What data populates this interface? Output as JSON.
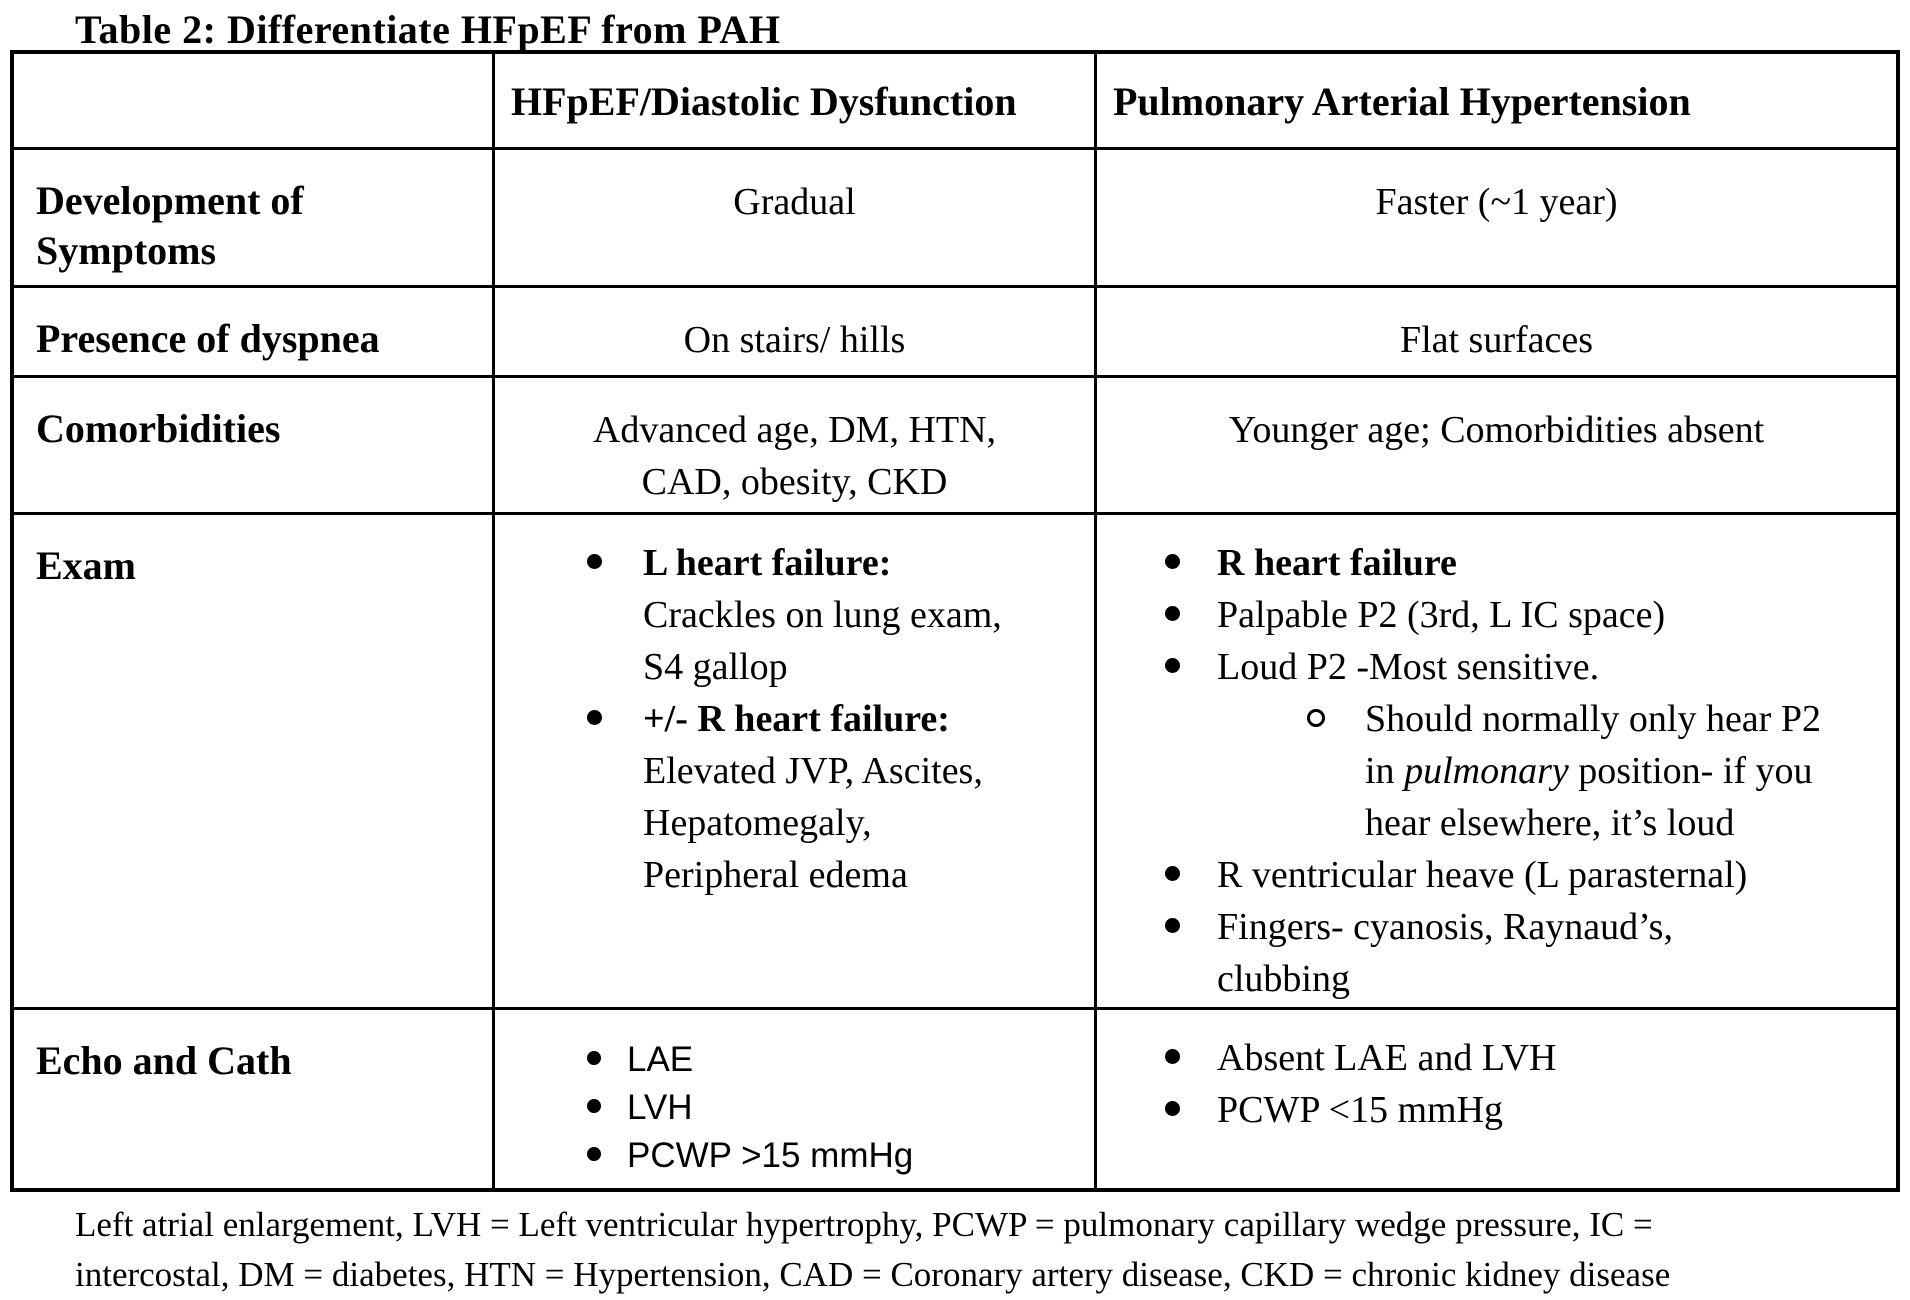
{
  "title": "Table 2: Differentiate HFpEF from PAH",
  "table": {
    "headers": {
      "hfpef": "HFpEF/Diastolic Dysfunction",
      "pah": "Pulmonary Arterial Hypertension"
    },
    "rows": {
      "development": {
        "label_line1": "Development of",
        "label_line2": "Symptoms",
        "hfpef": "Gradual",
        "pah": "Faster (~1 year)"
      },
      "dyspnea": {
        "label": "Presence of dyspnea",
        "hfpef": "On stairs/ hills",
        "pah": "Flat surfaces"
      },
      "comorbidities": {
        "label": "Comorbidities",
        "hfpef_line1": "Advanced age, DM, HTN,",
        "hfpef_line2": "CAD, obesity, CKD",
        "pah": "Younger age; Comorbidities absent"
      },
      "exam": {
        "label": "Exam",
        "hfpef": {
          "item1_title": "L heart failure:",
          "item1_line2": "Crackles on lung exam,",
          "item1_line3": "S4 gallop",
          "item2_title": "+/- R heart failure:",
          "item2_line2": "Elevated JVP, Ascites,",
          "item2_line3": "Hepatomegaly,",
          "item2_line4": "Peripheral edema"
        },
        "pah": {
          "item1": "R heart failure",
          "item2": "Palpable P2 (3rd, L IC space)",
          "item3": "Loud P2 -Most sensitive.",
          "sub_line1": "Should normally only hear P2",
          "sub_line2_pre": "in ",
          "sub_line2_italic": "pulmonary",
          "sub_line2_post": " position- if you",
          "sub_line3": "hear elsewhere, it’s loud",
          "item4": "R ventricular heave (L parasternal)",
          "item5_line1": "Fingers- cyanosis, Raynaud’s,",
          "item5_line2": "clubbing"
        }
      },
      "echo": {
        "label": "Echo and Cath",
        "hfpef_items": [
          "LAE",
          "LVH",
          "PCWP >15 mmHg"
        ],
        "pah_items": [
          "Absent LAE and LVH",
          "PCWP <15 mmHg"
        ]
      }
    }
  },
  "footnote": {
    "line1": "Left atrial enlargement, LVH = Left ventricular hypertrophy, PCWP = pulmonary capillary wedge pressure, IC =",
    "line2": "intercostal, DM = diabetes, HTN = Hypertension, CAD = Coronary artery disease, CKD = chronic kidney disease"
  }
}
